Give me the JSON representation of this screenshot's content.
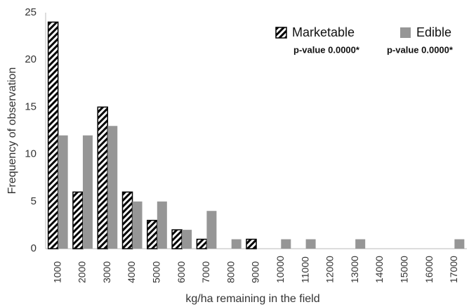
{
  "chart_data": {
    "type": "bar",
    "xlabel": "kg/ha remaining in the field",
    "ylabel": "Frequency of observation",
    "categories": [
      "1000",
      "2000",
      "3000",
      "4000",
      "5000",
      "6000",
      "7000",
      "8000",
      "9000",
      "10000",
      "11000",
      "12000",
      "13000",
      "14000",
      "15000",
      "16000",
      "17000"
    ],
    "series": [
      {
        "name": "Marketable",
        "color": "#000000",
        "pattern": "hatch",
        "values": [
          24,
          6,
          15,
          6,
          3,
          2,
          1,
          0,
          1,
          0,
          0,
          0,
          0,
          0,
          0,
          0,
          0
        ]
      },
      {
        "name": "Edible",
        "color": "#969696",
        "pattern": "solid",
        "values": [
          12,
          12,
          13,
          5,
          5,
          2,
          4,
          1,
          0,
          1,
          1,
          0,
          1,
          0,
          0,
          0,
          1
        ]
      }
    ],
    "annotations": [
      "p-value 0.0000*",
      "p-value 0.0000*"
    ],
    "ylim": [
      0,
      25
    ],
    "yticks": [
      0,
      5,
      10,
      15,
      20,
      25
    ],
    "grid": false
  }
}
